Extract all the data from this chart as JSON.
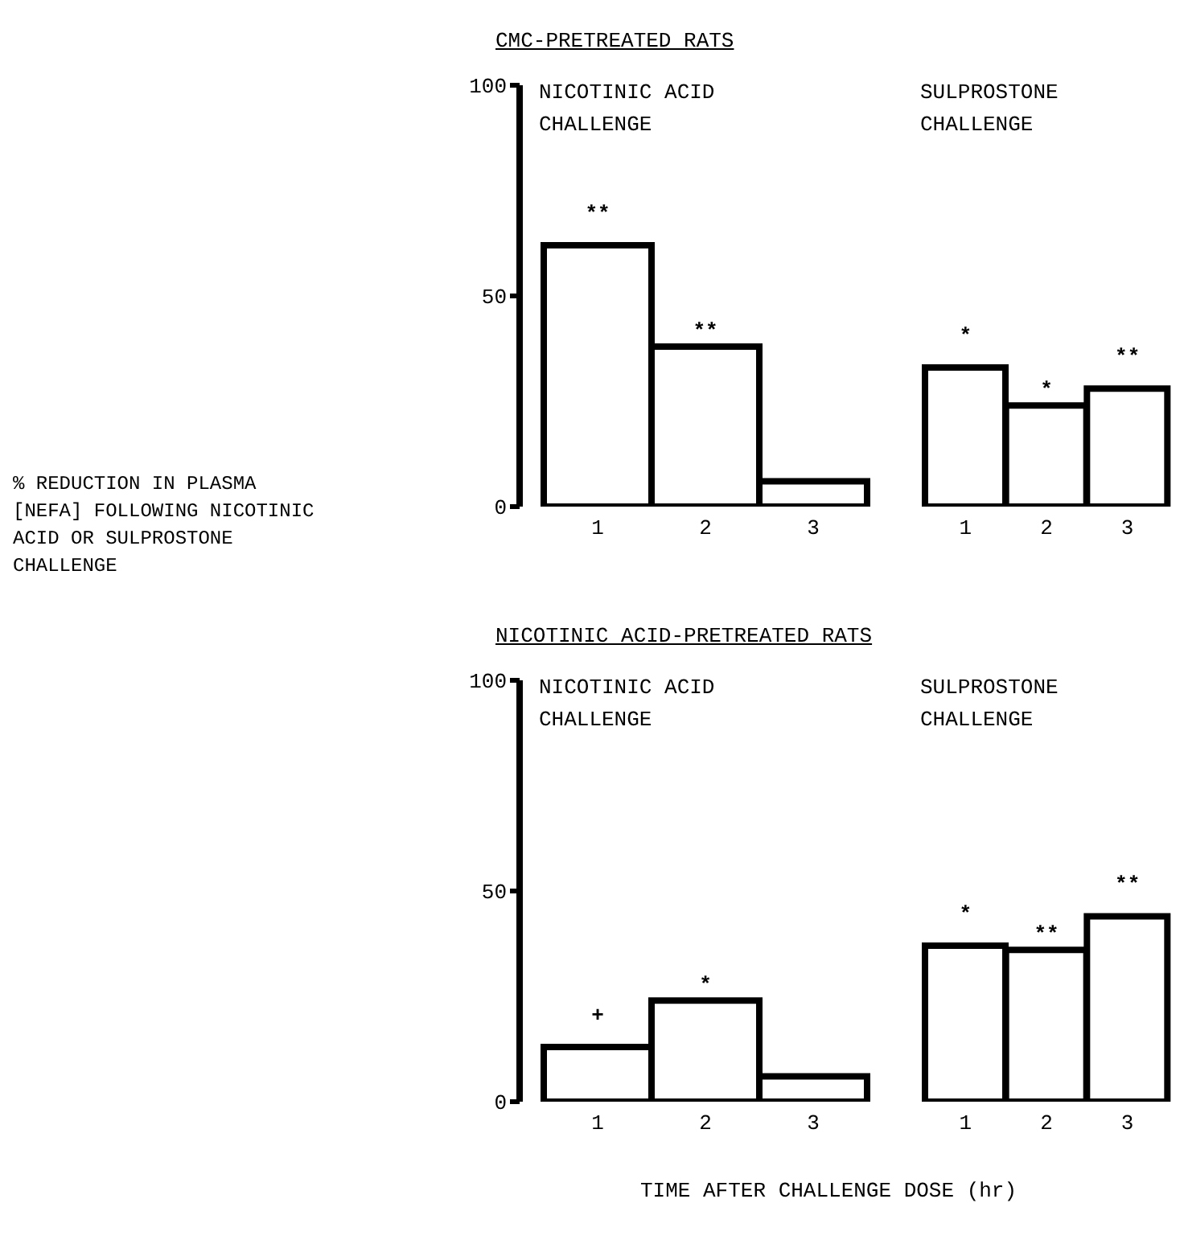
{
  "chart_data": [
    {
      "type": "bar",
      "title": "CMC-PRETREATED RATS",
      "subtitle": "NICOTINIC ACID CHALLENGE",
      "ylabel": "% REDUCTION IN PLASMA [NEFA] FOLLOWING NICOTINIC ACID OR SULPROSTONE CHALLENGE",
      "categories": [
        "1",
        "2",
        "3"
      ],
      "values": [
        62,
        38,
        6
      ],
      "color": "#000000",
      "ylim": [
        0,
        100
      ],
      "yticks": [
        0,
        50,
        100
      ],
      "annotations": [
        {
          "text": "**",
          "x": "1",
          "y": 62
        },
        {
          "text": "**",
          "x": "2",
          "y": 38
        }
      ]
    },
    {
      "type": "bar",
      "subtitle": "SULPROSTONE CHALLENGE",
      "categories": [
        "1",
        "2",
        "3"
      ],
      "values": [
        33,
        24,
        28
      ],
      "color": "#000000",
      "ylim": [
        0,
        100
      ],
      "yticks": [
        0,
        50,
        100
      ],
      "tick_labels": "x",
      "annotations": [
        {
          "text": "*",
          "x": "1",
          "y": 33
        },
        {
          "text": "*",
          "x": "2",
          "y": 24
        },
        {
          "text": "**",
          "x": "3",
          "y": 28
        }
      ]
    },
    {
      "type": "bar",
      "title": "NICOTINIC ACID-PRETREATED RATS",
      "subtitle": "NICOTINIC ACID CHALLENGE",
      "categories": [
        "1",
        "2",
        "3"
      ],
      "values": [
        13,
        24,
        6
      ],
      "color": "#000000",
      "ylim": [
        0,
        100
      ],
      "yticks": [
        0,
        50,
        100
      ],
      "annotations": [
        {
          "text": "+",
          "x": "1",
          "y": 13
        },
        {
          "text": "*",
          "x": "2",
          "y": 24
        }
      ]
    },
    {
      "type": "bar",
      "subtitle": "SULPROSTONE CHALLENGE",
      "xlabel": "TIME AFTER CHALLENGE DOSE (hr)",
      "categories": [
        "1",
        "2",
        "3"
      ],
      "values": [
        37,
        36,
        44
      ],
      "color": "#000000",
      "ylim": [
        0,
        100
      ],
      "yticks": [
        0,
        50,
        100
      ],
      "tick_labels": "x",
      "annotations": [
        {
          "text": "*",
          "x": "1",
          "y": 37
        },
        {
          "text": "**",
          "x": "2",
          "y": 36
        },
        {
          "text": "**",
          "x": "3",
          "y": 44
        }
      ]
    }
  ]
}
